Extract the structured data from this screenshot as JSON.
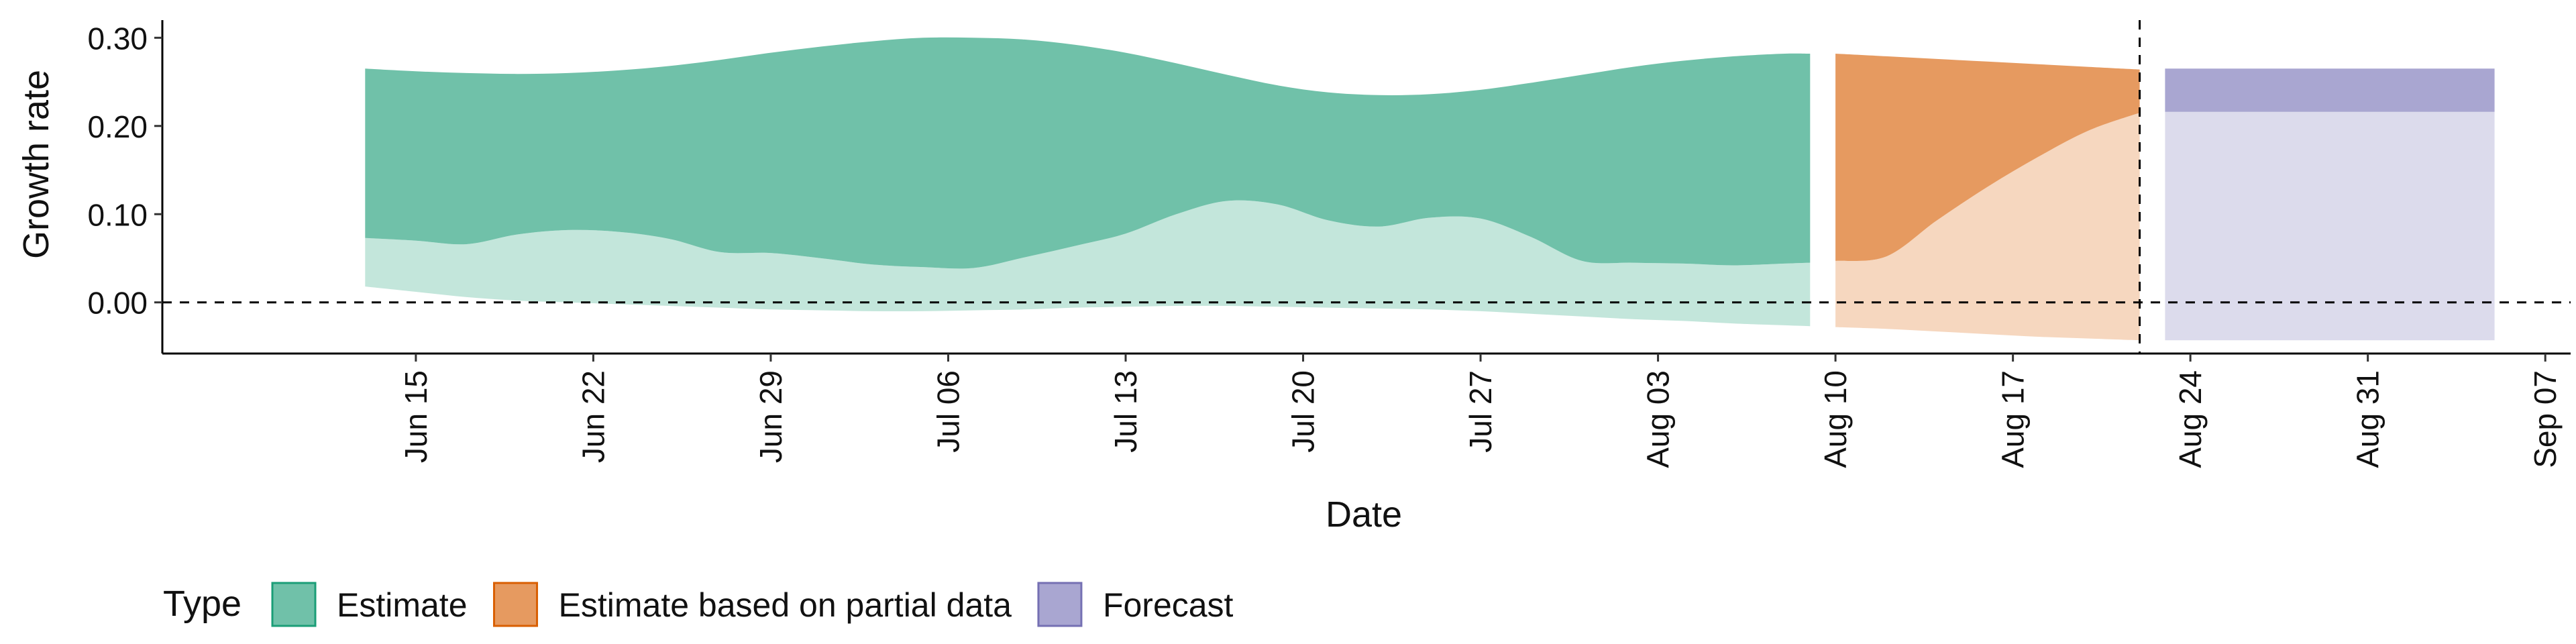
{
  "chart_data": {
    "type": "area",
    "xlabel": "Date",
    "ylabel": "Growth rate",
    "y_ticks": [
      0.0,
      0.1,
      0.2,
      0.3
    ],
    "y_tick_labels": [
      "0.00",
      "0.10",
      "0.20",
      "0.30"
    ],
    "ylim": [
      -0.058,
      0.32
    ],
    "xlim": [
      "2020-06-05",
      "2020-09-08"
    ],
    "x_ticks": [
      "2020-06-15",
      "2020-06-22",
      "2020-06-29",
      "2020-07-06",
      "2020-07-13",
      "2020-07-20",
      "2020-07-27",
      "2020-08-03",
      "2020-08-10",
      "2020-08-17",
      "2020-08-24",
      "2020-08-31",
      "2020-09-07"
    ],
    "x_tick_labels": [
      "Jun 15",
      "Jun 22",
      "Jun 29",
      "Jul 06",
      "Jul 13",
      "Jul 20",
      "Jul 27",
      "Aug 03",
      "Aug 10",
      "Aug 17",
      "Aug 24",
      "Aug 31",
      "Sep 07"
    ],
    "hline": 0.0,
    "vline": "2020-08-22",
    "legend": {
      "title": "Type",
      "position": "bottom",
      "items": [
        {
          "label": "Estimate",
          "fill": "#70c1a9",
          "stroke": "#1b9e77"
        },
        {
          "label": "Estimate based on partial data",
          "fill": "#e69a60",
          "stroke": "#d95f02"
        },
        {
          "label": "Forecast",
          "fill": "#a9a6d1",
          "stroke": "#7570b3"
        }
      ]
    },
    "series": [
      {
        "name": "Estimate",
        "color": "#70c1a9",
        "light_color": "#c3e6db",
        "x": [
          "2020-06-13",
          "2020-06-15",
          "2020-06-17",
          "2020-06-19",
          "2020-06-21",
          "2020-06-23",
          "2020-06-25",
          "2020-06-27",
          "2020-06-29",
          "2020-07-01",
          "2020-07-03",
          "2020-07-05",
          "2020-07-07",
          "2020-07-09",
          "2020-07-11",
          "2020-07-13",
          "2020-07-15",
          "2020-07-17",
          "2020-07-19",
          "2020-07-21",
          "2020-07-23",
          "2020-07-25",
          "2020-07-27",
          "2020-07-29",
          "2020-07-31",
          "2020-08-02",
          "2020-08-04",
          "2020-08-06",
          "2020-08-08",
          "2020-08-09"
        ],
        "upper_90": [
          0.265,
          0.262,
          0.26,
          0.259,
          0.26,
          0.263,
          0.268,
          0.275,
          0.283,
          0.29,
          0.296,
          0.3,
          0.3,
          0.298,
          0.292,
          0.283,
          0.271,
          0.258,
          0.246,
          0.238,
          0.235,
          0.236,
          0.241,
          0.249,
          0.258,
          0.267,
          0.274,
          0.279,
          0.282,
          0.282
        ],
        "upper_50": [
          0.073,
          0.07,
          0.066,
          0.077,
          0.082,
          0.08,
          0.072,
          0.057,
          0.056,
          0.05,
          0.043,
          0.04,
          0.039,
          0.051,
          0.064,
          0.078,
          0.1,
          0.115,
          0.111,
          0.093,
          0.086,
          0.096,
          0.095,
          0.074,
          0.047,
          0.045,
          0.044,
          0.042,
          0.044,
          0.045
        ],
        "lower_90": [
          0.018,
          0.012,
          0.006,
          0.002,
          0.0,
          -0.002,
          -0.004,
          -0.006,
          -0.008,
          -0.009,
          -0.01,
          -0.01,
          -0.009,
          -0.008,
          -0.006,
          -0.005,
          -0.004,
          -0.004,
          -0.005,
          -0.006,
          -0.007,
          -0.008,
          -0.01,
          -0.013,
          -0.016,
          -0.019,
          -0.021,
          -0.024,
          -0.026,
          -0.027
        ]
      },
      {
        "name": "Estimate based on partial data",
        "color": "#e69a60",
        "light_color": "#f6d7bf",
        "x": [
          "2020-08-10",
          "2020-08-12",
          "2020-08-14",
          "2020-08-16",
          "2020-08-18",
          "2020-08-20",
          "2020-08-22"
        ],
        "upper_90": [
          0.282,
          0.279,
          0.276,
          0.273,
          0.27,
          0.267,
          0.264
        ],
        "upper_50": [
          0.047,
          0.052,
          0.093,
          0.131,
          0.165,
          0.195,
          0.215
        ],
        "lower_90": [
          -0.028,
          -0.03,
          -0.033,
          -0.036,
          -0.039,
          -0.041,
          -0.043
        ]
      },
      {
        "name": "Forecast",
        "color": "#a9a6d1",
        "light_color": "#dcdbec",
        "x": [
          "2020-08-23",
          "2020-09-05"
        ],
        "upper_90": [
          0.265,
          0.265
        ],
        "upper_50": [
          0.216,
          0.216
        ],
        "lower_90": [
          -0.043,
          -0.043
        ]
      }
    ]
  }
}
